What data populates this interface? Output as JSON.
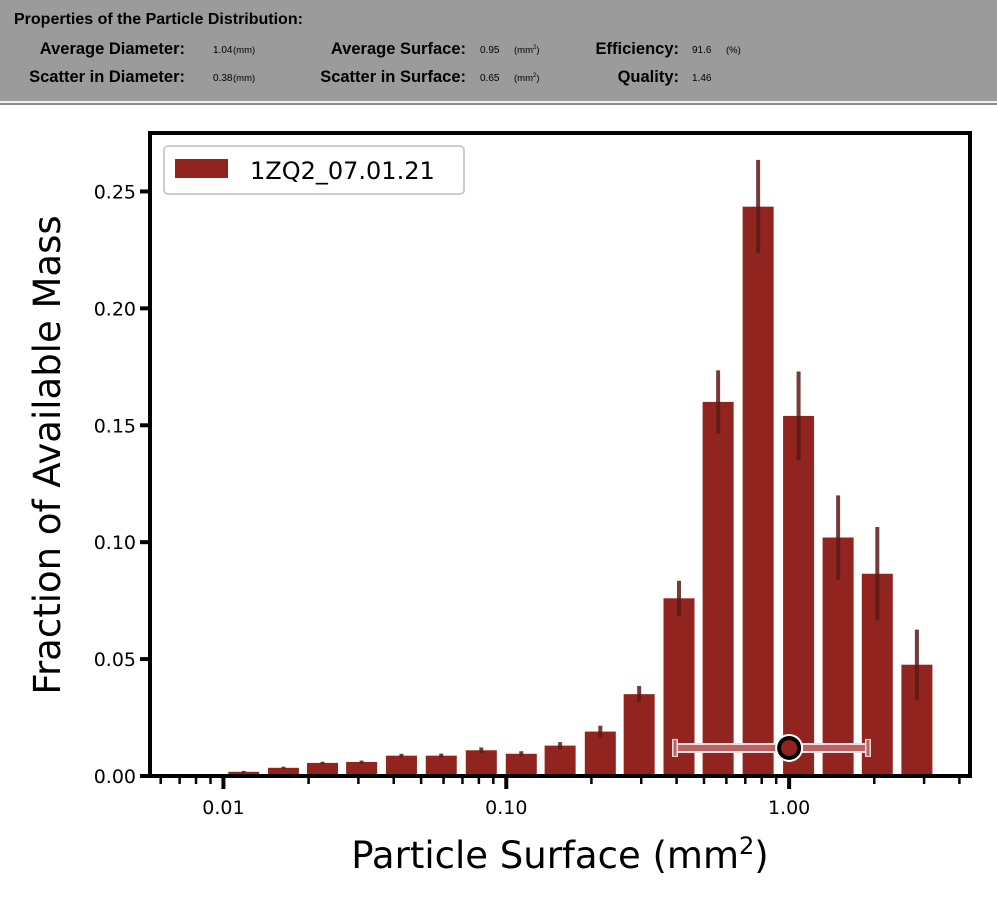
{
  "header": {
    "title": "Properties of the Particle Distribution:",
    "average_diameter": {
      "label": "Average Diameter:",
      "value": "1.04",
      "unit": "(mm)"
    },
    "average_surface": {
      "label": "Average Surface:",
      "value": "0.95",
      "unit": "(mm²)"
    },
    "efficiency": {
      "label": "Efficiency:",
      "value": "91.6",
      "unit": "(%)"
    },
    "scatter_diameter": {
      "label": "Scatter in Diameter:",
      "value": "0.38",
      "unit": "(mm)"
    },
    "scatter_surface": {
      "label": "Scatter in Surface:",
      "value": "0.65",
      "unit": "(mm²)"
    },
    "quality": {
      "label": "Quality:",
      "value": "1.46"
    }
  },
  "chart_data": {
    "type": "bar",
    "xscale": "log",
    "xlabel": "Particle Surface (mm²)",
    "xlabel_base": "Particle Surface (mm",
    "xlabel_sup": "2",
    "xlabel_end": ")",
    "ylabel": "Fraction of Available Mass",
    "xlim": [
      0.0055,
      4.36
    ],
    "ylim": [
      0,
      0.275
    ],
    "xticks": [
      {
        "v": 0.01,
        "label": "0.01"
      },
      {
        "v": 0.1,
        "label": "0.10"
      },
      {
        "v": 1,
        "label": "1.00"
      }
    ],
    "yticks": [
      {
        "v": 0,
        "label": "0.00"
      },
      {
        "v": 0.05,
        "label": "0.05"
      },
      {
        "v": 0.1,
        "label": "0.10"
      },
      {
        "v": 0.15,
        "label": "0.15"
      },
      {
        "v": 0.2,
        "label": "0.20"
      },
      {
        "v": 0.25,
        "label": "0.25"
      }
    ],
    "legend": {
      "position": "top-left",
      "entries": [
        "1ZQ2_07.01.21"
      ]
    },
    "bar_color": "#922420",
    "error_color": "#5a1a18",
    "series": [
      {
        "name": "1ZQ2_07.01.21",
        "x": [
          0.0118,
          0.0163,
          0.0224,
          0.0308,
          0.0426,
          0.0589,
          0.0816,
          0.113,
          0.155,
          0.215,
          0.295,
          0.408,
          0.561,
          0.777,
          1.08,
          1.49,
          2.05,
          2.83
        ],
        "values": [
          0.0018,
          0.0035,
          0.0056,
          0.006,
          0.0087,
          0.0087,
          0.011,
          0.0095,
          0.013,
          0.019,
          0.035,
          0.076,
          0.16,
          0.2435,
          0.154,
          0.102,
          0.0865,
          0.0476
        ],
        "errors": [
          0.0004,
          0.0005,
          0.0005,
          0.0006,
          0.0008,
          0.0009,
          0.0012,
          0.0011,
          0.0015,
          0.0025,
          0.0035,
          0.0075,
          0.0135,
          0.02,
          0.019,
          0.018,
          0.02,
          0.015
        ]
      }
    ],
    "summary_marker": {
      "x": 1.0,
      "y": 0.012,
      "x_low": 0.395,
      "x_high": 1.9,
      "color": "#b86464"
    }
  }
}
